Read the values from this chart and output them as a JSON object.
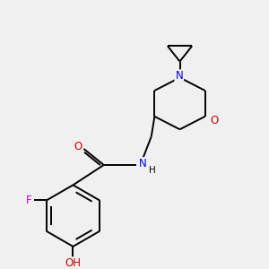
{
  "background_color": "#f0f0f0",
  "bond_color": "#000000",
  "atom_colors": {
    "N": "#0000ee",
    "O": "#cc0000",
    "F": "#cc00cc",
    "C": "#000000",
    "H": "#000000"
  },
  "figsize": [
    3.0,
    3.0
  ],
  "dpi": 100,
  "bond_lw": 1.4,
  "font_size": 8.5
}
